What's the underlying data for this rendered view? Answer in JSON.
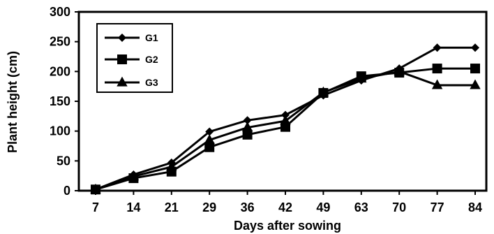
{
  "chart_data": {
    "type": "line",
    "title": "",
    "xlabel": "Days after sowing",
    "ylabel": "Plant height (cm)",
    "categories": [
      "7",
      "14",
      "21",
      "29",
      "36",
      "42",
      "49",
      "63",
      "70",
      "77",
      "84"
    ],
    "ylim": [
      0,
      300
    ],
    "yticks": [
      0,
      50,
      100,
      150,
      200,
      250,
      300
    ],
    "grid": false,
    "legend_position": "top-left",
    "series": [
      {
        "name": "G1",
        "marker": "diamond",
        "color": "#000000",
        "values": [
          2,
          27,
          47,
          99,
          118,
          127,
          160,
          185,
          205,
          240,
          240
        ]
      },
      {
        "name": "G2",
        "marker": "square",
        "color": "#000000",
        "values": [
          2,
          21,
          32,
          73,
          94,
          107,
          164,
          192,
          198,
          205,
          205
        ]
      },
      {
        "name": "G3",
        "marker": "triangle",
        "color": "#000000",
        "values": [
          2,
          24,
          40,
          85,
          106,
          117,
          165,
          188,
          200,
          177,
          177
        ]
      }
    ]
  }
}
